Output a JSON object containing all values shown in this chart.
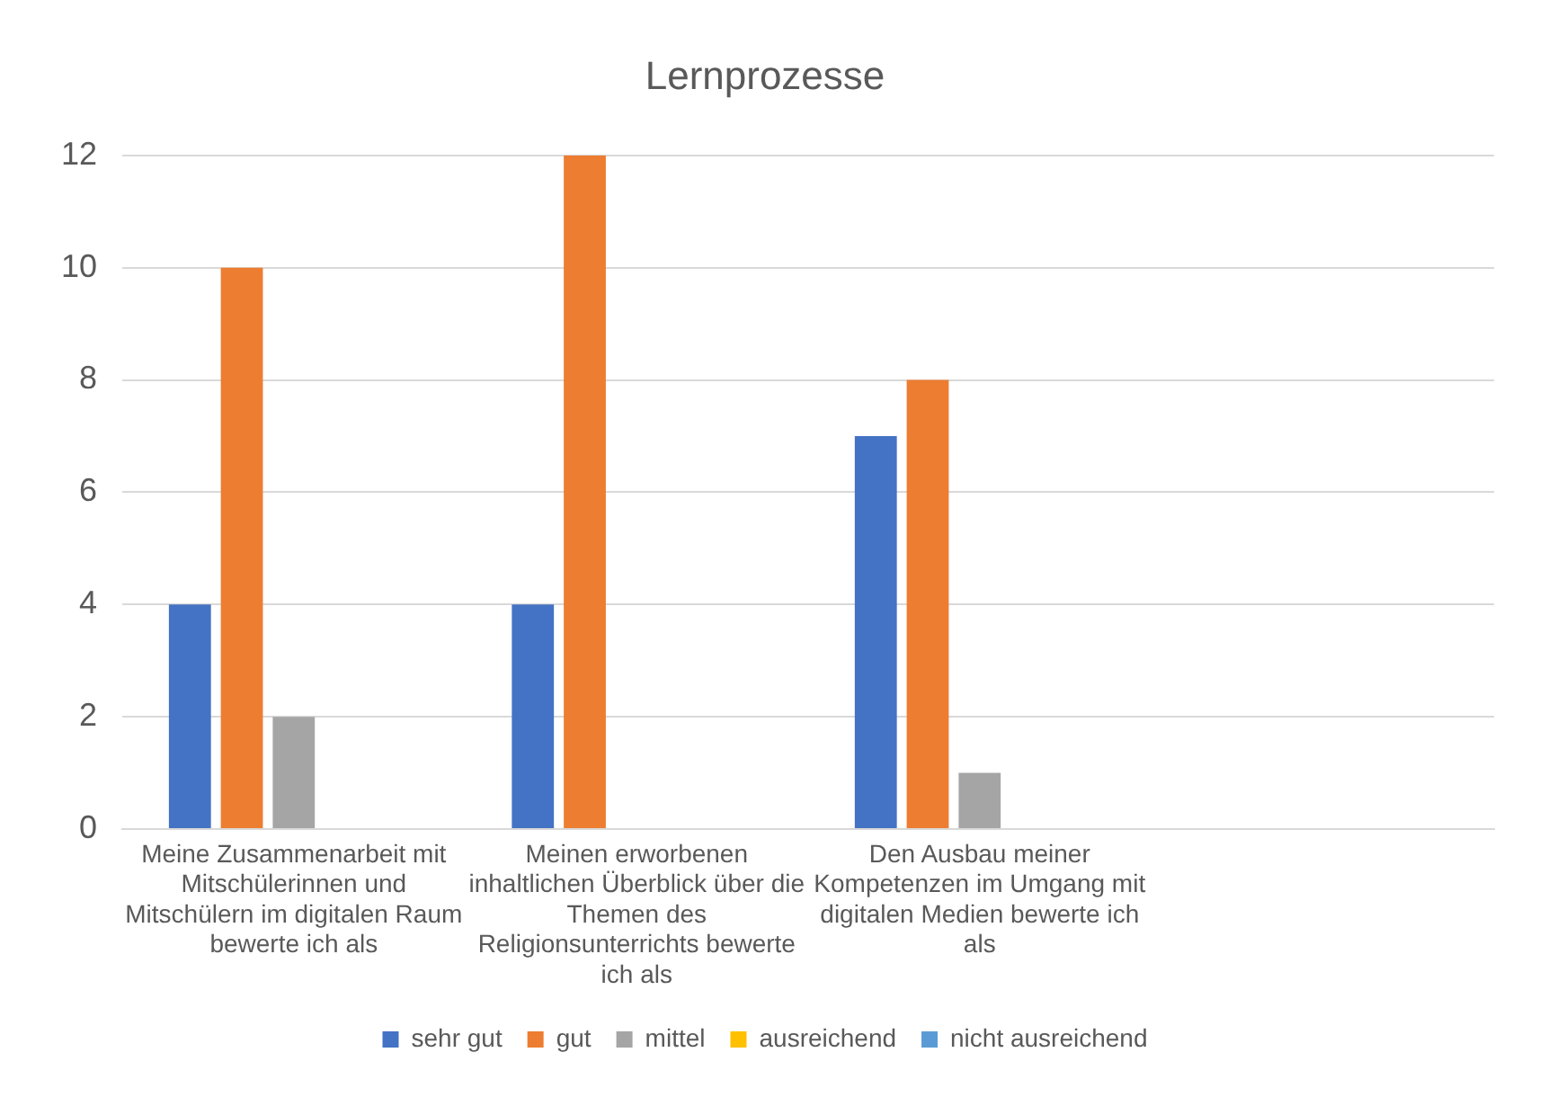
{
  "chart_data": {
    "type": "bar",
    "title": "Lernprozesse",
    "categories": [
      "Meine Zusammenarbeit mit Mitschülerinnen und Mitschülern im digitalen Raum bewerte ich als",
      "Meinen erworbenen inhaltlichen Überblick über die Themen des Religionsunterrichts bewerte ich als",
      "Den Ausbau meiner Kompetenzen im Umgang mit digitalen Medien bewerte ich als",
      null
    ],
    "series": [
      {
        "name": "sehr gut",
        "color": "#4472c4",
        "values": [
          4,
          4,
          7,
          null
        ]
      },
      {
        "name": "gut",
        "color": "#ed7d31",
        "values": [
          10,
          12,
          8,
          null
        ]
      },
      {
        "name": "mittel",
        "color": "#a5a5a5",
        "values": [
          2,
          0,
          1,
          null
        ]
      },
      {
        "name": "ausreichend",
        "color": "#ffc000",
        "values": [
          0,
          0,
          0,
          null
        ]
      },
      {
        "name": "nicht ausreichend",
        "color": "#5b9bd5",
        "values": [
          0,
          0,
          0,
          null
        ]
      }
    ],
    "ylim": [
      0,
      12
    ],
    "yticks": [
      0,
      2,
      4,
      6,
      8,
      10,
      12
    ],
    "grid": "y",
    "legend": "bottom"
  }
}
